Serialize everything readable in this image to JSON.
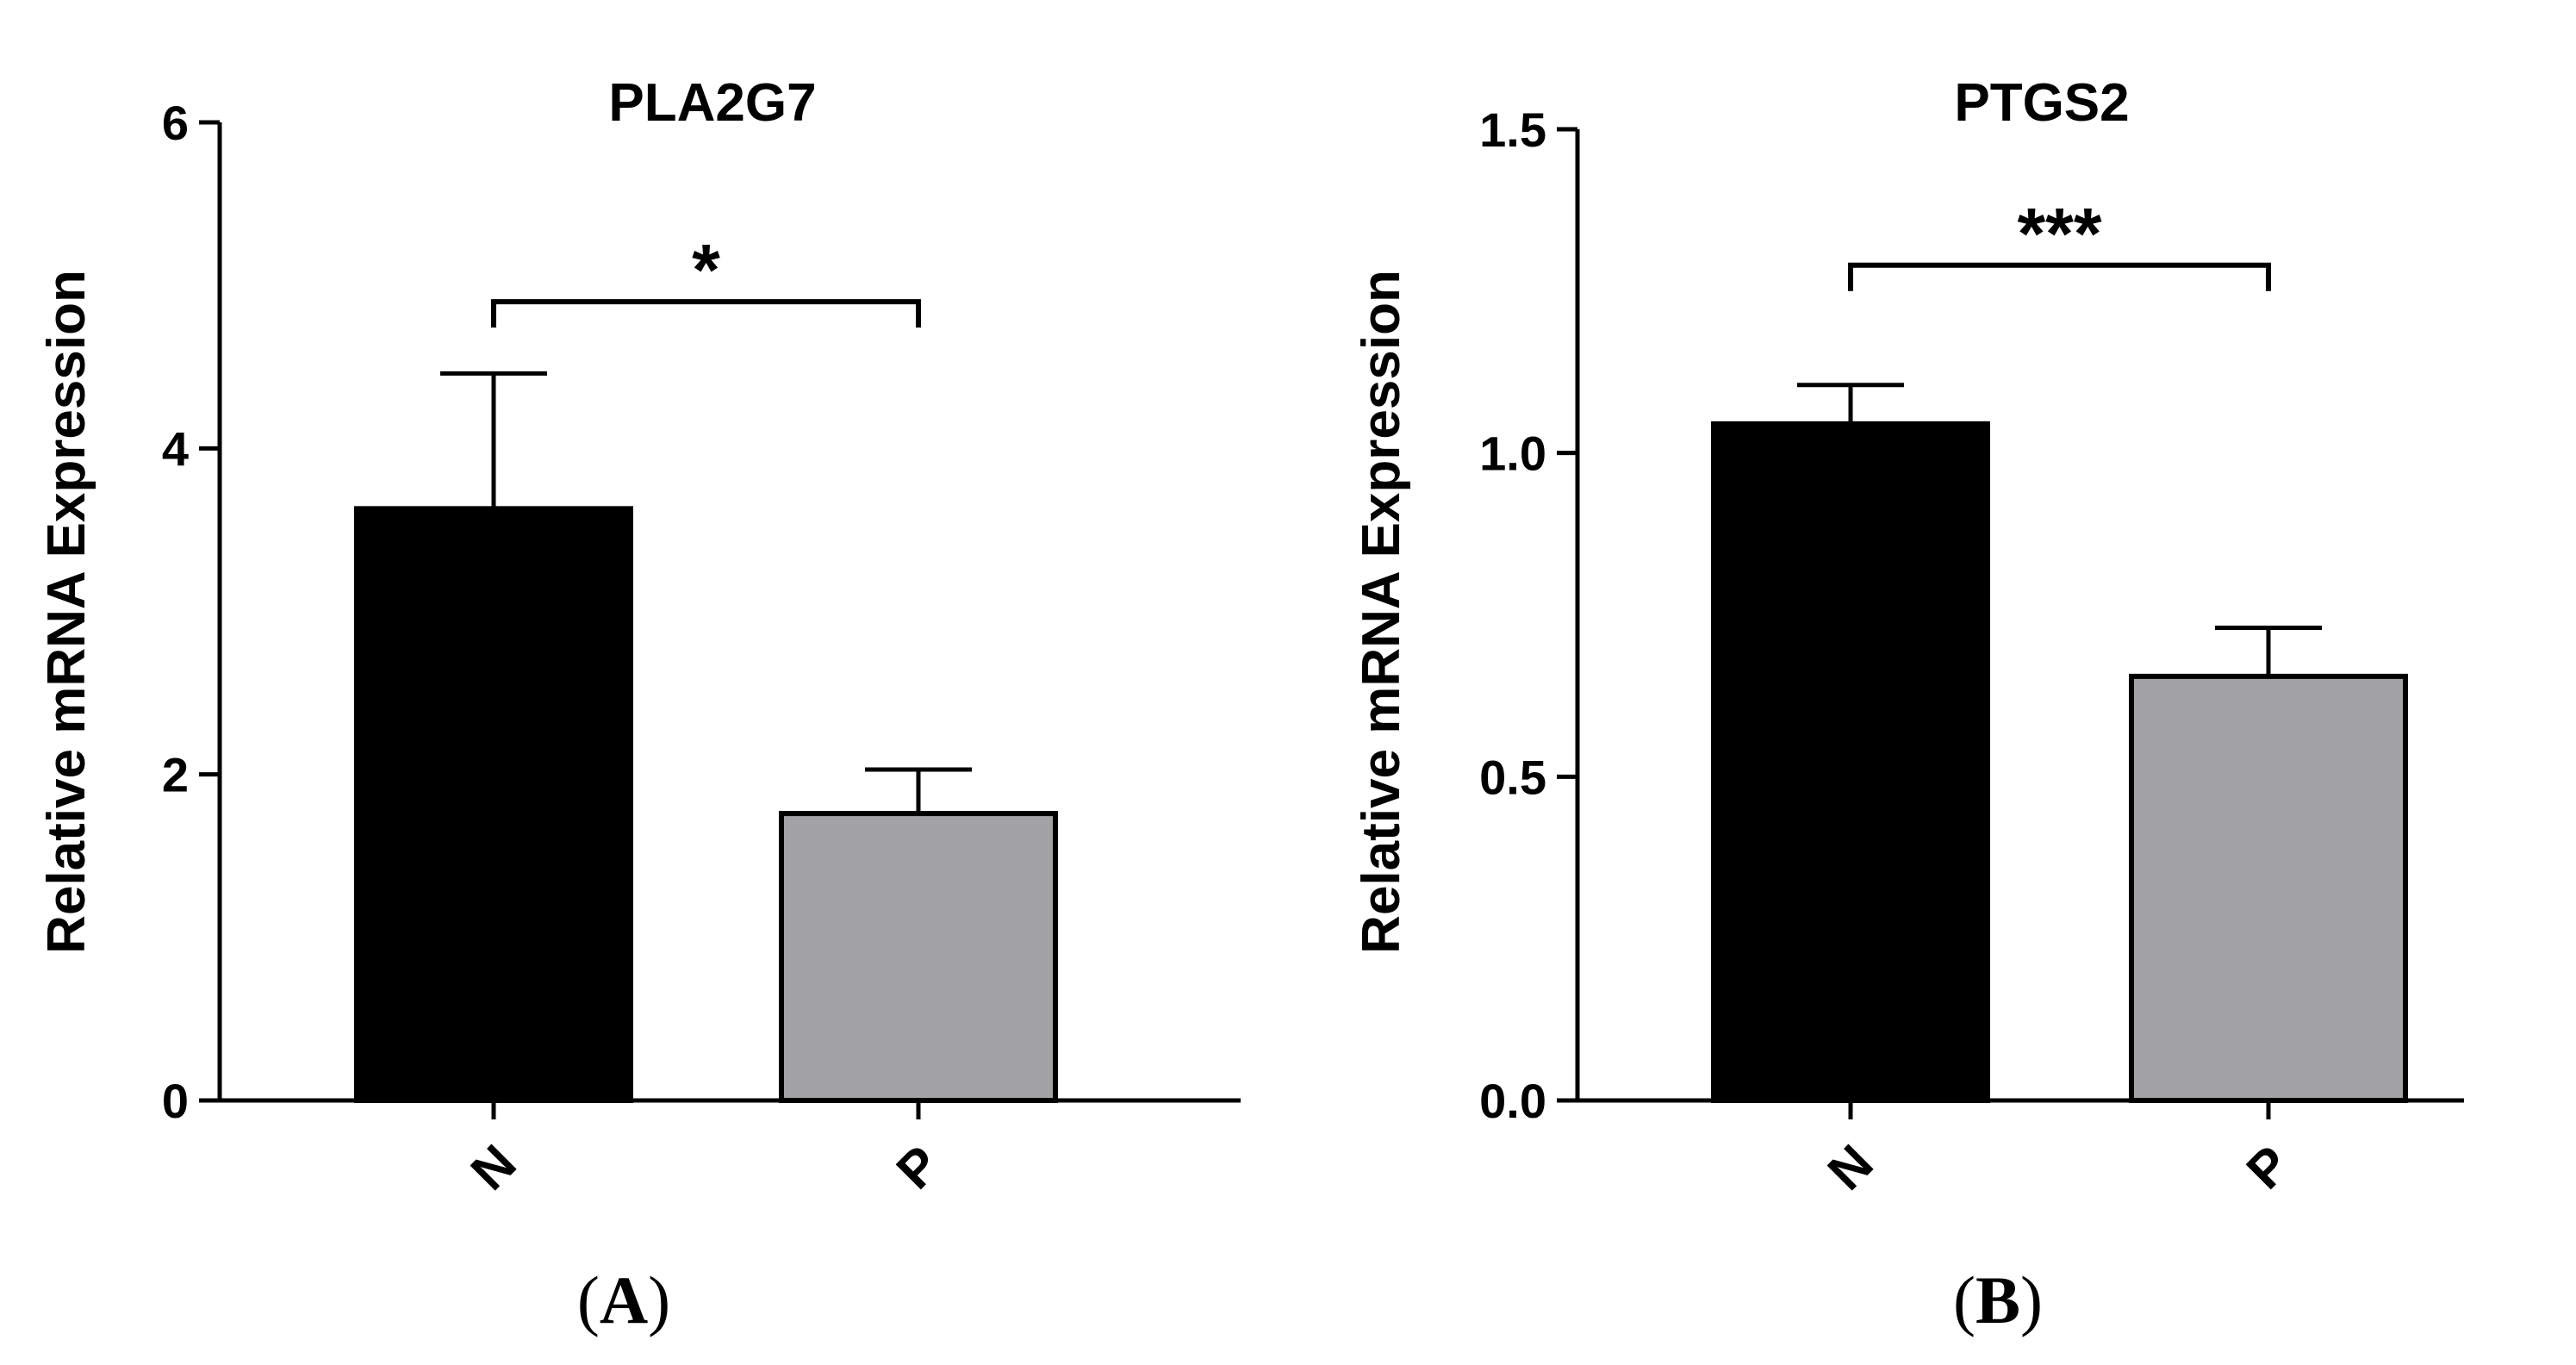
{
  "chart_data": [
    {
      "type": "bar",
      "panel_label": "A",
      "title": "PLA2G7",
      "xlabel": "",
      "ylabel": "Relative mRNA Expression",
      "categories": [
        "N",
        "P"
      ],
      "values": [
        3.63,
        1.76
      ],
      "error_upper": [
        4.46,
        2.03
      ],
      "colors": [
        "#000000",
        "#a3a3a6"
      ],
      "ylim": [
        0,
        6
      ],
      "yticks": [
        0,
        2,
        4,
        6
      ],
      "ytick_labels": [
        "0",
        "2",
        "4",
        "6"
      ],
      "significance": {
        "label": "*",
        "from": 0,
        "to": 1,
        "y": 4.9
      }
    },
    {
      "type": "bar",
      "panel_label": "B",
      "title": "PTGS2",
      "xlabel": "",
      "ylabel": "Relative mRNA Expression",
      "categories": [
        "N",
        "P"
      ],
      "values": [
        1.045,
        0.655
      ],
      "error_upper": [
        1.105,
        0.73
      ],
      "colors": [
        "#000000",
        "#a3a3a6"
      ],
      "ylim": [
        0,
        1.5
      ],
      "yticks": [
        0,
        0.5,
        1.0,
        1.5
      ],
      "ytick_labels": [
        "0.0",
        "0.5",
        "1.0",
        "1.5"
      ],
      "significance": {
        "label": "***",
        "from": 0,
        "to": 1,
        "y": 1.29
      }
    }
  ]
}
